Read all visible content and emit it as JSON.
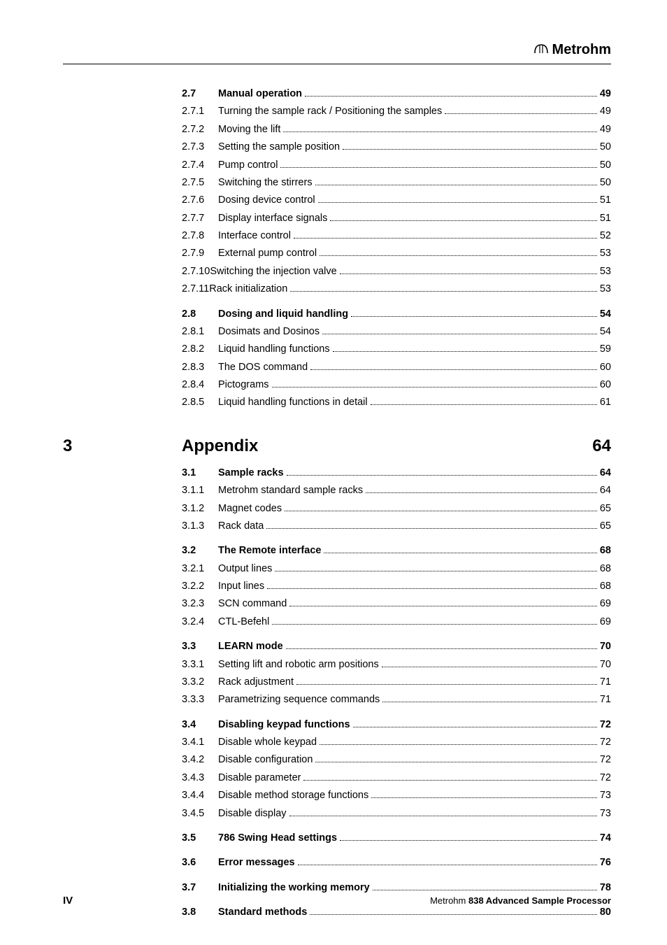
{
  "logo_text": "Metrohm",
  "toc": [
    {
      "num": "2.7",
      "title": "Manual operation",
      "page": "49",
      "bold": true,
      "gap": false
    },
    {
      "num": "2.7.1",
      "title": "Turning the sample rack / Positioning the samples",
      "page": "49",
      "bold": false,
      "gap": false
    },
    {
      "num": "2.7.2",
      "title": "Moving the lift",
      "page": "49",
      "bold": false,
      "gap": false
    },
    {
      "num": "2.7.3",
      "title": "Setting the sample position",
      "page": "50",
      "bold": false,
      "gap": false
    },
    {
      "num": "2.7.4",
      "title": "Pump control",
      "page": "50",
      "bold": false,
      "gap": false
    },
    {
      "num": "2.7.5",
      "title": "Switching the stirrers",
      "page": "50",
      "bold": false,
      "gap": false
    },
    {
      "num": "2.7.6",
      "title": "Dosing device control",
      "page": "51",
      "bold": false,
      "gap": false
    },
    {
      "num": "2.7.7",
      "title": "Display interface signals",
      "page": "51",
      "bold": false,
      "gap": false
    },
    {
      "num": "2.7.8",
      "title": "Interface control",
      "page": "52",
      "bold": false,
      "gap": false
    },
    {
      "num": "2.7.9",
      "title": "External pump control",
      "page": "53",
      "bold": false,
      "gap": false
    },
    {
      "num": "2.7.10",
      "title": "Switching the injection valve",
      "page": "53",
      "bold": false,
      "gap": false,
      "nospace": true
    },
    {
      "num": "2.7.11",
      "title": "Rack initialization",
      "page": "53",
      "bold": false,
      "gap": false,
      "nospace": true
    },
    {
      "num": "2.8",
      "title": "Dosing and liquid handling",
      "page": "54",
      "bold": true,
      "gap": true
    },
    {
      "num": "2.8.1",
      "title": "Dosimats and Dosinos",
      "page": "54",
      "bold": false,
      "gap": false
    },
    {
      "num": "2.8.2",
      "title": "Liquid handling functions",
      "page": "59",
      "bold": false,
      "gap": false
    },
    {
      "num": "2.8.3",
      "title": "The DOS command",
      "page": "60",
      "bold": false,
      "gap": false
    },
    {
      "num": "2.8.4",
      "title": "Pictograms",
      "page": "60",
      "bold": false,
      "gap": false
    },
    {
      "num": "2.8.5",
      "title": "Liquid handling functions in detail",
      "page": "61",
      "bold": false,
      "gap": false
    }
  ],
  "chapter": {
    "num": "3",
    "title": "Appendix",
    "page": "64"
  },
  "toc2": [
    {
      "num": "3.1",
      "title": "Sample racks",
      "page": "64",
      "bold": true,
      "gap": false
    },
    {
      "num": "3.1.1",
      "title": "Metrohm standard sample racks",
      "page": "64",
      "bold": false,
      "gap": false
    },
    {
      "num": "3.1.2",
      "title": "Magnet codes",
      "page": "65",
      "bold": false,
      "gap": false
    },
    {
      "num": "3.1.3",
      "title": "Rack data",
      "page": "65",
      "bold": false,
      "gap": false
    },
    {
      "num": "3.2",
      "title": "The Remote interface",
      "page": "68",
      "bold": true,
      "gap": true
    },
    {
      "num": "3.2.1",
      "title": "Output lines",
      "page": "68",
      "bold": false,
      "gap": false
    },
    {
      "num": "3.2.2",
      "title": "Input lines",
      "page": "68",
      "bold": false,
      "gap": false
    },
    {
      "num": "3.2.3",
      "title": "SCN command",
      "page": "69",
      "bold": false,
      "gap": false
    },
    {
      "num": "3.2.4",
      "title": "CTL-Befehl",
      "page": "69",
      "bold": false,
      "gap": false
    },
    {
      "num": "3.3",
      "title": "LEARN mode",
      "page": "70",
      "bold": true,
      "gap": true
    },
    {
      "num": "3.3.1",
      "title": "Setting lift and robotic arm positions",
      "page": "70",
      "bold": false,
      "gap": false
    },
    {
      "num": "3.3.2",
      "title": "Rack adjustment",
      "page": "71",
      "bold": false,
      "gap": false
    },
    {
      "num": "3.3.3",
      "title": "Parametrizing sequence commands",
      "page": "71",
      "bold": false,
      "gap": false
    },
    {
      "num": "3.4",
      "title": "Disabling keypad functions",
      "page": "72",
      "bold": true,
      "gap": true
    },
    {
      "num": "3.4.1",
      "title": "Disable whole keypad",
      "page": "72",
      "bold": false,
      "gap": false
    },
    {
      "num": "3.4.2",
      "title": "Disable configuration",
      "page": "72",
      "bold": false,
      "gap": false
    },
    {
      "num": "3.4.3",
      "title": "Disable parameter",
      "page": "72",
      "bold": false,
      "gap": false
    },
    {
      "num": "3.4.4",
      "title": "Disable method storage functions",
      "page": "73",
      "bold": false,
      "gap": false
    },
    {
      "num": "3.4.5",
      "title": "Disable display",
      "page": "73",
      "bold": false,
      "gap": false
    },
    {
      "num": "3.5",
      "title": "786 Swing Head settings",
      "page": "74",
      "bold": true,
      "gap": true
    },
    {
      "num": "3.6",
      "title": "Error messages",
      "page": "76",
      "bold": true,
      "gap": true
    },
    {
      "num": "3.7",
      "title": "Initializing the working memory",
      "page": "78",
      "bold": true,
      "gap": true
    },
    {
      "num": "3.8",
      "title": "Standard methods",
      "page": "80",
      "bold": true,
      "gap": true
    }
  ],
  "footer": {
    "page_num": "IV",
    "brand": "Metrohm",
    "product": " 838 Advanced Sample Processor"
  }
}
